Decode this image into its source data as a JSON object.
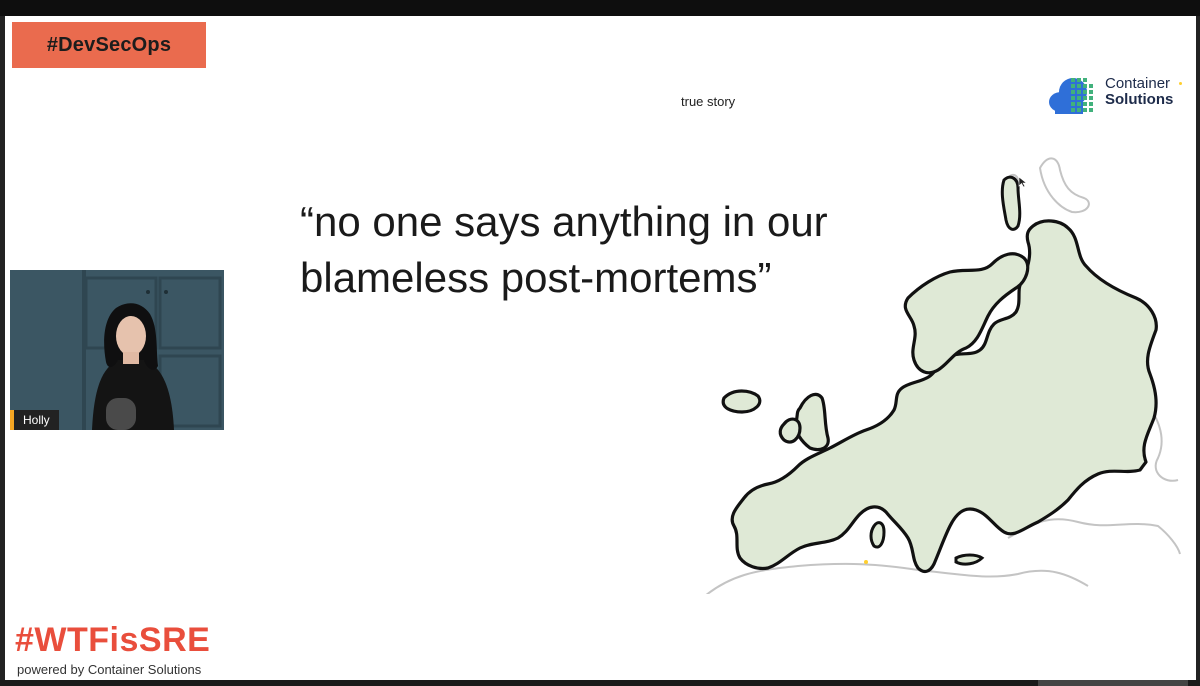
{
  "slide": {
    "tag": "#DevSecOps",
    "subtitle": "true story",
    "quote_line1": "“no one says anything in our",
    "quote_line2": "blameless post-mortems”"
  },
  "logo": {
    "line1": "Container",
    "line2": "Solutions",
    "icon": "cloud-grid-icon"
  },
  "participant": {
    "name": "Holly"
  },
  "branding": {
    "hashtag": "#WTFisSRE",
    "powered_by": "powered by Container Solutions"
  },
  "colors": {
    "tag_background": "#ea6b4e",
    "brand_red": "#e94e3c",
    "map_fill": "#dfe9d6",
    "camera_background": "#3d5865",
    "name_accent": "#f5a623",
    "logo_blue": "#2f6fd8",
    "logo_green": "#41b17c"
  }
}
